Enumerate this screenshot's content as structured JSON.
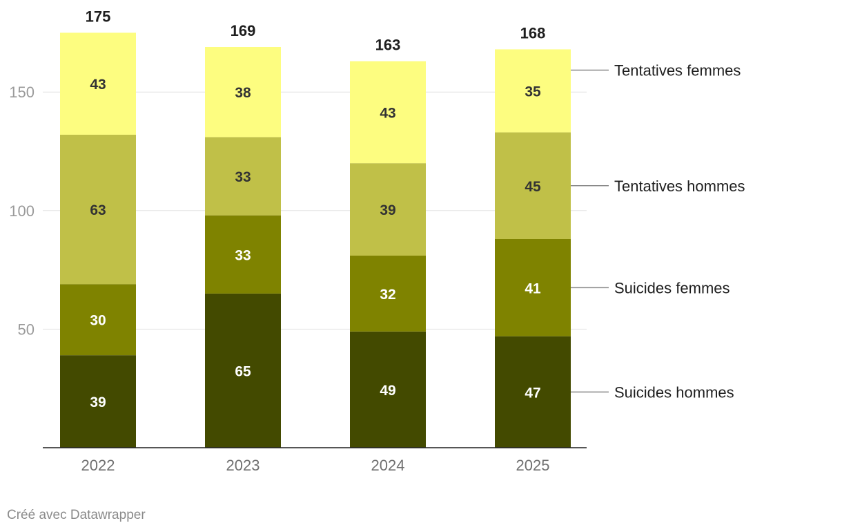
{
  "chart_data": {
    "type": "bar",
    "stacked": true,
    "categories": [
      "2022",
      "2023",
      "2024",
      "2025"
    ],
    "series": [
      {
        "name": "Suicides hommes",
        "values": [
          39,
          65,
          49,
          47
        ],
        "color": "#434a00",
        "label_color": "#ffffff"
      },
      {
        "name": "Suicides femmes",
        "values": [
          30,
          33,
          32,
          41
        ],
        "color": "#7f8300",
        "label_color": "#ffffff"
      },
      {
        "name": "Tentatives hommes",
        "values": [
          63,
          33,
          39,
          45
        ],
        "color": "#c0c048",
        "label_color": "#333333"
      },
      {
        "name": "Tentatives femmes",
        "values": [
          43,
          38,
          43,
          35
        ],
        "color": "#fdfd80",
        "label_color": "#333333"
      }
    ],
    "totals": [
      175,
      169,
      163,
      168
    ],
    "y_ticks": [
      50,
      100,
      150
    ],
    "ylim": [
      0,
      175
    ],
    "grid": true,
    "legend_position": "right"
  },
  "footer": {
    "credit": "Créé avec Datawrapper"
  }
}
